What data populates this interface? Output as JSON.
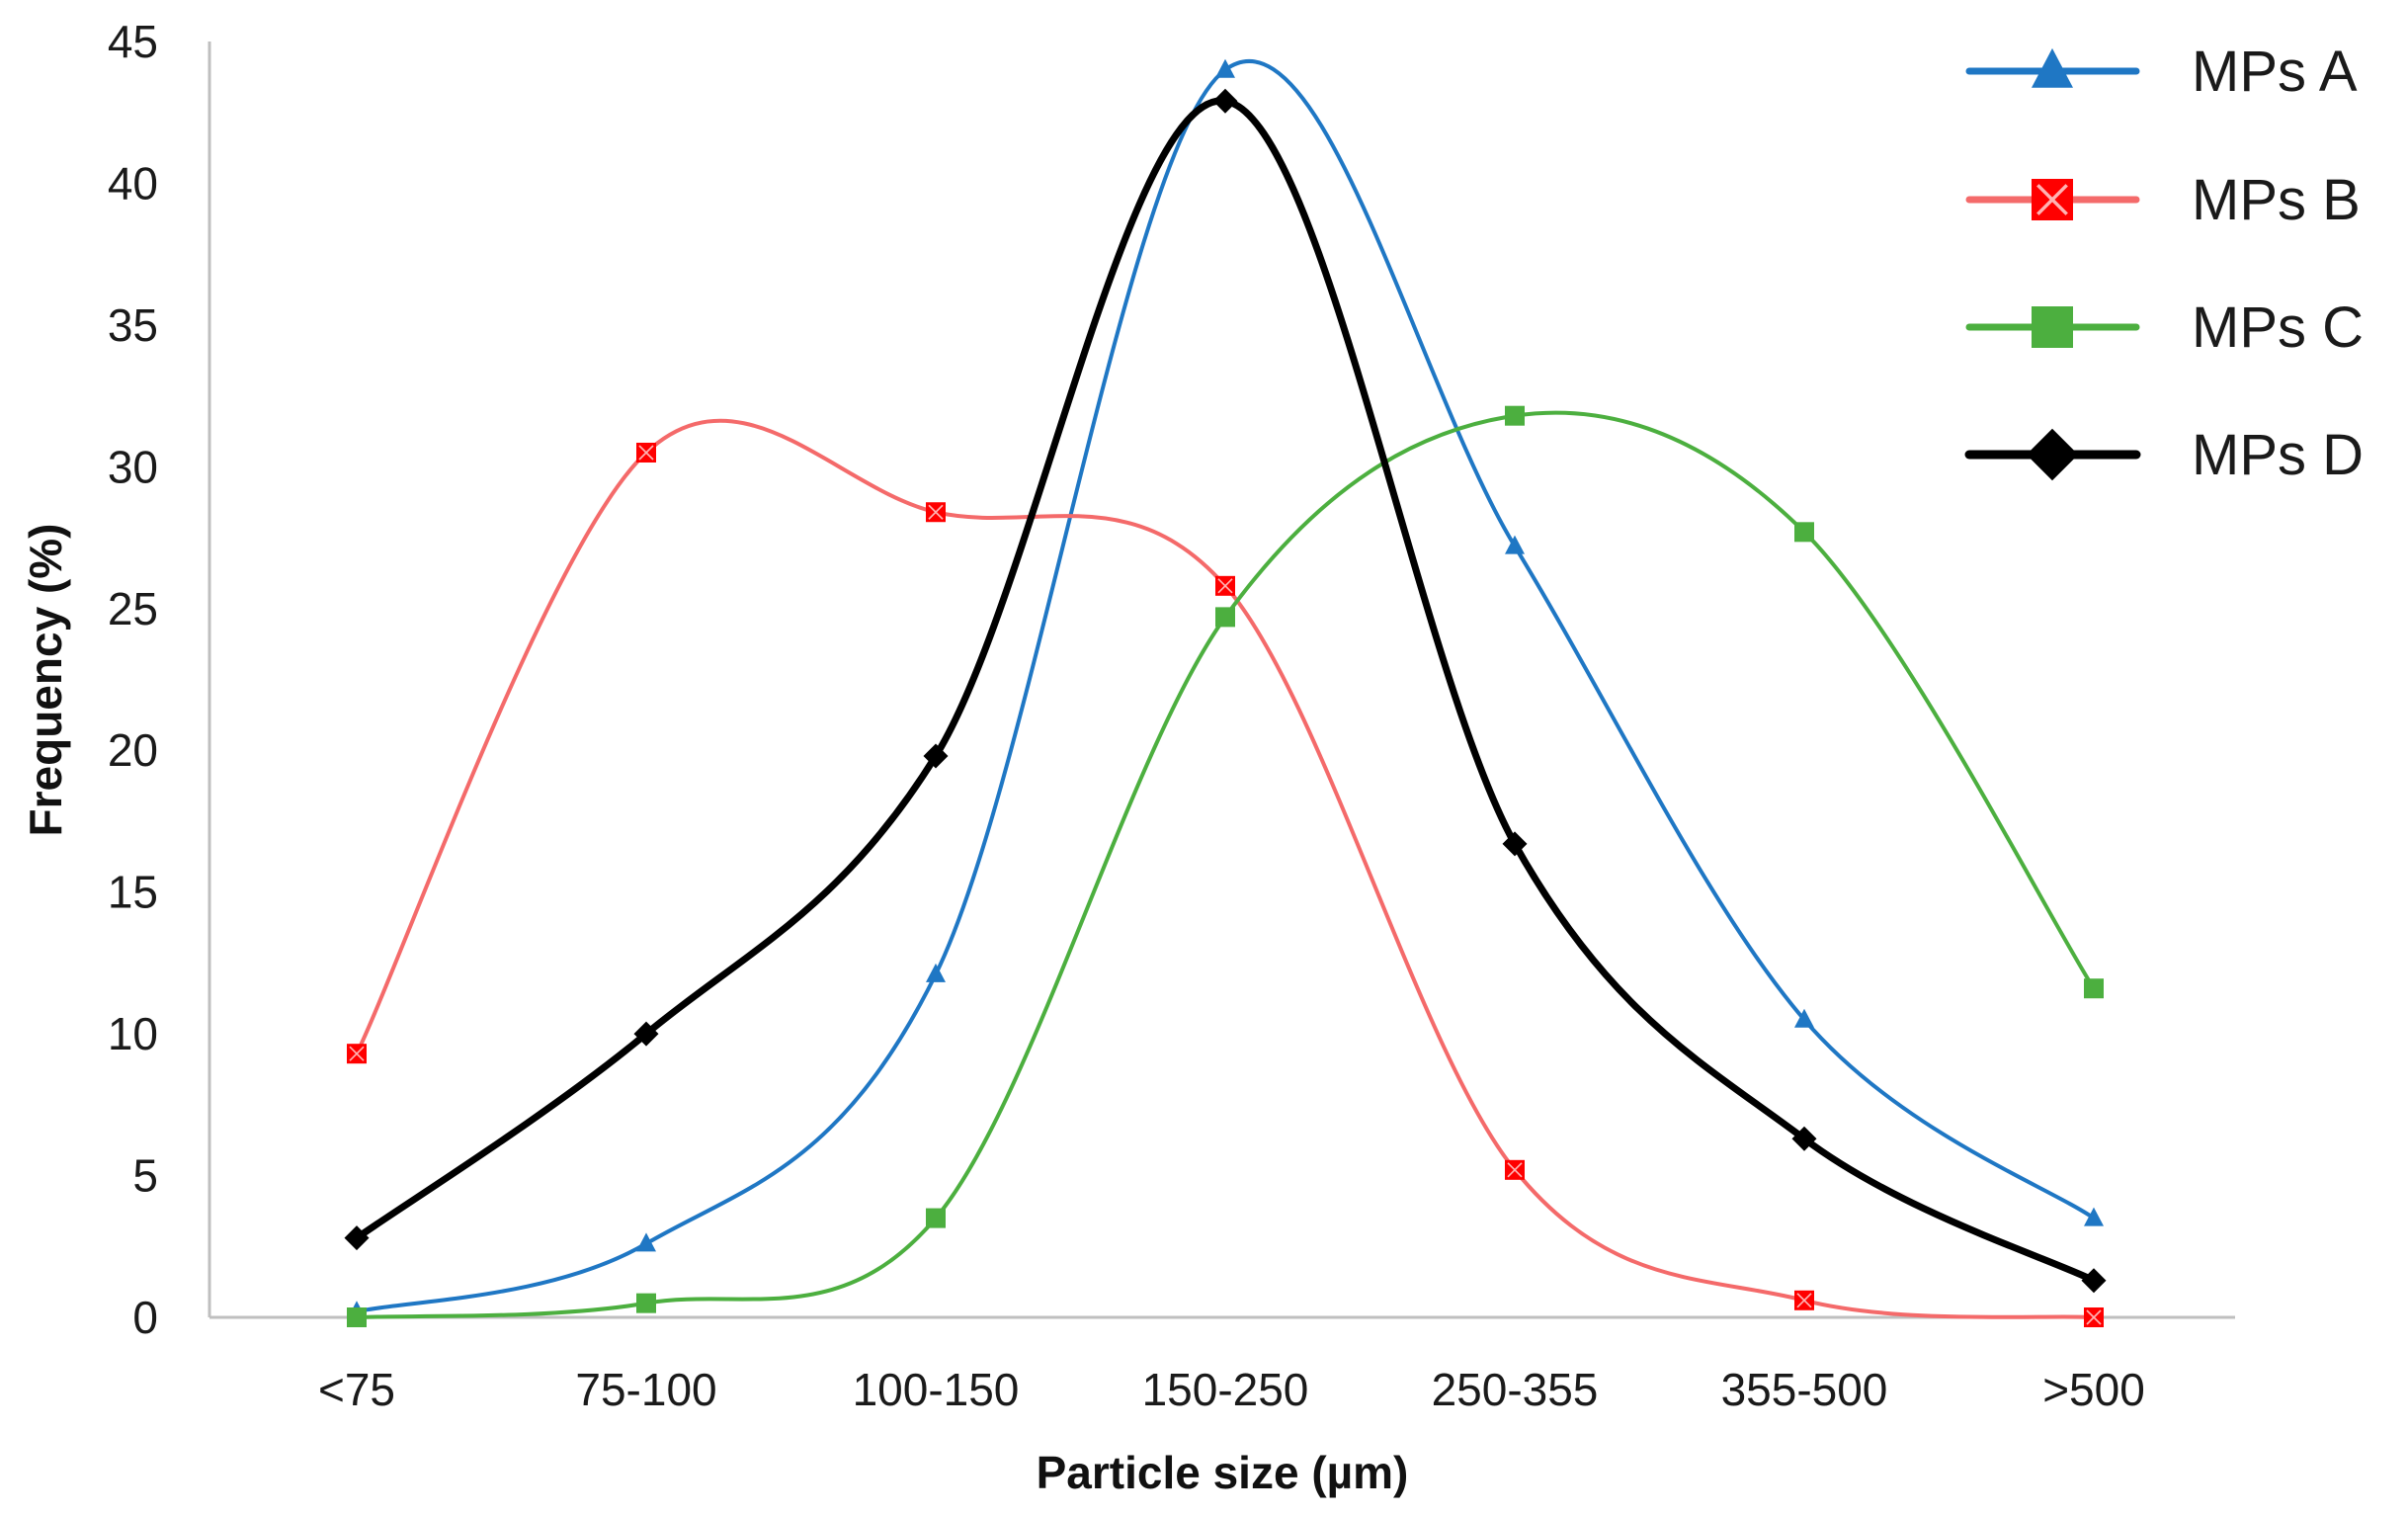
{
  "chart_data": {
    "type": "line",
    "title": "",
    "xlabel": "Particle size (µm)",
    "ylabel": "Frequency (%)",
    "ylim": [
      0,
      45
    ],
    "yticks": [
      0,
      5,
      10,
      15,
      20,
      25,
      30,
      35,
      40,
      45
    ],
    "grid": false,
    "smooth": true,
    "legend_position": "top-right",
    "categories": [
      "<75",
      "75-100",
      "100-150",
      "150-250",
      "250-355",
      "355-500",
      ">500"
    ],
    "series": [
      {
        "name": "MPs A",
        "color": "#1f77c4",
        "marker": "triangle",
        "values": [
          0.2,
          2.6,
          12.1,
          44.0,
          27.2,
          10.5,
          3.5
        ]
      },
      {
        "name": "MPs B",
        "color": "#f46a6a",
        "marker_color": "#ff0000",
        "marker": "square-x",
        "values": [
          9.3,
          30.5,
          28.4,
          25.8,
          5.2,
          0.6,
          0.0
        ]
      },
      {
        "name": "MPs C",
        "color": "#4caf3f",
        "marker": "square",
        "values": [
          0.0,
          0.5,
          3.5,
          24.7,
          31.8,
          27.7,
          11.6
        ]
      },
      {
        "name": "MPs D",
        "color": "#000000",
        "marker": "diamond",
        "values": [
          2.8,
          10.0,
          19.8,
          42.9,
          16.7,
          6.3,
          1.3
        ]
      }
    ]
  }
}
